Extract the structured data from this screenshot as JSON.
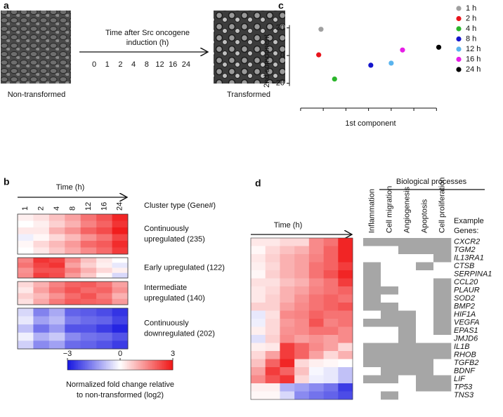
{
  "panel_labels": [
    "a",
    "b",
    "c",
    "d"
  ],
  "panel_a": {
    "left_caption": "Non-transformed",
    "right_caption": "Transformed",
    "arrow_text": [
      "Time after Src oncogene",
      "induction (h)"
    ],
    "timepoints": [
      "0",
      "1",
      "2",
      "4",
      "8",
      "12",
      "16",
      "24"
    ]
  },
  "panel_b": {
    "time_label": "Time (h)",
    "columns": [
      "1",
      "2",
      "4",
      "8",
      "12",
      "16",
      "24"
    ],
    "cluster_header": "Cluster type (Gene#)",
    "clusters": [
      {
        "label": [
          "Continuously",
          "upregulated (235)"
        ],
        "rows": [
          [
            0.2,
            0.4,
            0.8,
            1.2,
            1.8,
            2.2,
            2.8
          ],
          [
            0.0,
            0.2,
            0.6,
            1.0,
            1.6,
            2.0,
            2.6
          ],
          [
            0.3,
            0.3,
            1.0,
            1.4,
            2.0,
            2.3,
            2.9
          ],
          [
            -0.2,
            0.1,
            0.5,
            0.9,
            1.4,
            1.8,
            2.4
          ],
          [
            0.1,
            0.5,
            0.9,
            1.3,
            1.9,
            2.1,
            2.7
          ],
          [
            0.0,
            0.3,
            0.7,
            1.1,
            1.5,
            1.9,
            2.5
          ]
        ]
      },
      {
        "label": [
          "Early upregulated (122)"
        ],
        "rows": [
          [
            1.6,
            2.6,
            2.4,
            1.5,
            0.8,
            0.3,
            0.0
          ],
          [
            1.8,
            2.4,
            2.6,
            1.2,
            0.6,
            0.2,
            -0.3
          ],
          [
            1.4,
            2.2,
            2.2,
            1.6,
            1.0,
            0.5,
            0.2
          ],
          [
            1.5,
            2.5,
            2.3,
            1.3,
            0.7,
            0.1,
            -0.5
          ]
        ]
      },
      {
        "label": [
          "Intermediate",
          "upregulated (140)"
        ],
        "rows": [
          [
            0.5,
            1.0,
            1.6,
            2.0,
            2.1,
            1.8,
            1.2
          ],
          [
            0.3,
            1.2,
            1.8,
            2.2,
            1.9,
            2.0,
            1.4
          ],
          [
            0.6,
            0.9,
            1.4,
            1.9,
            2.2,
            1.7,
            1.0
          ],
          [
            0.4,
            1.1,
            1.7,
            2.1,
            2.0,
            1.9,
            1.3
          ]
        ]
      },
      {
        "label": [
          "Continuously",
          "downregulated (202)"
        ],
        "rows": [
          [
            -0.5,
            -1.6,
            -1.1,
            -2.0,
            -2.1,
            -2.3,
            -2.6
          ],
          [
            -0.3,
            -1.2,
            -0.9,
            -1.7,
            -1.9,
            -2.0,
            -2.4
          ],
          [
            -0.8,
            -1.8,
            -1.3,
            -2.2,
            -2.2,
            -2.5,
            -2.8
          ],
          [
            -0.2,
            -1.0,
            -0.7,
            -1.5,
            -1.8,
            -1.9,
            -2.2
          ],
          [
            -0.6,
            -1.5,
            -1.2,
            -1.9,
            -2.0,
            -2.2,
            -2.5
          ]
        ]
      }
    ],
    "colorbar": {
      "lim": [
        -3,
        3
      ],
      "low_color": "#1515e0",
      "high_color": "#f01515",
      "ticks": [
        {
          "value": -3,
          "label": "−3"
        },
        0,
        3
      ],
      "title": [
        "Normalized fold change relative",
        "to non-transformed (log2)"
      ]
    }
  },
  "chart_data": {
    "type": "scatter",
    "xlabel": "1st component",
    "ylabel": "2nd component",
    "xlim": [
      -34,
      42
    ],
    "ylim": [
      -36,
      29
    ],
    "xticks": [
      -30,
      -20,
      -10,
      0,
      10,
      20,
      30
    ],
    "yticks": [
      {
        "value": -20,
        "label": "−20"
      },
      0,
      20
    ],
    "series": [
      {
        "name": "1 h",
        "color": "#a0a0a0",
        "x": [
          -21
        ],
        "values": [
          19
        ]
      },
      {
        "name": "2 h",
        "color": "#e8141c",
        "x": [
          -22
        ],
        "values": [
          0.5
        ]
      },
      {
        "name": "4 h",
        "color": "#2ab52a",
        "x": [
          -15
        ],
        "values": [
          -17
        ]
      },
      {
        "name": "8 h",
        "color": "#1414cc",
        "x": [
          1
        ],
        "values": [
          -7
        ]
      },
      {
        "name": "12 h",
        "color": "#5ab4ee",
        "x": [
          10
        ],
        "values": [
          -5.5
        ]
      },
      {
        "name": "16 h",
        "color": "#e61ee6",
        "x": [
          15
        ],
        "values": [
          4
        ]
      },
      {
        "name": "24 h",
        "color": "#000000",
        "x": [
          31
        ],
        "values": [
          6
        ]
      }
    ]
  },
  "panel_d": {
    "time_label": "Time (h)",
    "columns": [
      "1",
      "2",
      "4",
      "8",
      "12",
      "16",
      "24"
    ],
    "process_title": "Biological processes",
    "processes": [
      "Inflammation",
      "Cell migration",
      "Angiogenesis",
      "Apoptosis",
      "Cell proliferation"
    ],
    "genes_header": [
      "Example",
      "Genes:"
    ],
    "genes": [
      "CXCR2",
      "TGM2",
      "IL13RA1",
      "CTSB",
      "SERPINA1",
      "CCL20",
      "PLAUR",
      "SOD2",
      "BMP2",
      "HIF1A",
      "VEGFA",
      "EPAS1",
      "JMJD6",
      "IL1B",
      "RHOB",
      "TGFB2",
      "BDNF",
      "LIF",
      "TP53",
      "TNS3"
    ],
    "values": [
      [
        0.3,
        0.3,
        0.5,
        0.5,
        1.5,
        1.8,
        2.8
      ],
      [
        0.1,
        0.5,
        0.8,
        1.0,
        1.5,
        2.0,
        2.8
      ],
      [
        0.3,
        0.6,
        1.0,
        1.2,
        1.6,
        2.0,
        2.8
      ],
      [
        0.2,
        0.5,
        1.0,
        1.2,
        1.8,
        2.0,
        2.5
      ],
      [
        0.1,
        0.6,
        1.0,
        1.2,
        1.8,
        2.2,
        2.8
      ],
      [
        0.4,
        0.4,
        0.8,
        1.0,
        1.5,
        1.8,
        2.5
      ],
      [
        0.3,
        0.5,
        1.0,
        1.2,
        1.6,
        1.8,
        2.0
      ],
      [
        0.3,
        0.6,
        1.0,
        1.4,
        1.8,
        2.0,
        1.8
      ],
      [
        0.6,
        0.6,
        1.2,
        1.5,
        1.8,
        2.0,
        2.2
      ],
      [
        -0.3,
        0.4,
        1.5,
        1.6,
        2.0,
        1.8,
        1.8
      ],
      [
        -0.2,
        0.5,
        1.3,
        1.5,
        2.2,
        1.6,
        1.8
      ],
      [
        0.2,
        0.5,
        1.4,
        1.5,
        1.8,
        1.8,
        1.5
      ],
      [
        -0.4,
        0.6,
        1.5,
        1.2,
        1.4,
        1.2,
        1.5
      ],
      [
        0.2,
        0.3,
        2.5,
        2.0,
        1.5,
        1.2,
        0.5
      ],
      [
        0.5,
        1.2,
        2.5,
        2.0,
        1.2,
        0.5,
        1.0
      ],
      [
        0.8,
        2.0,
        2.8,
        0.5,
        0.2,
        0.1,
        0.0
      ],
      [
        1.2,
        2.5,
        2.0,
        0.8,
        -0.1,
        -0.3,
        -0.8
      ],
      [
        1.5,
        2.2,
        2.6,
        0.5,
        -0.2,
        -0.3,
        -0.8
      ],
      [
        0.2,
        0.2,
        -1.0,
        -1.2,
        -1.5,
        -1.8,
        -2.5
      ],
      [
        0.1,
        0.1,
        -0.5,
        -1.5,
        -1.8,
        -2.0,
        -2.3
      ]
    ],
    "membership": [
      [
        1,
        1,
        1,
        1,
        1
      ],
      [
        0,
        0,
        1,
        1,
        1
      ],
      [
        0,
        0,
        0,
        0,
        1
      ],
      [
        1,
        0,
        0,
        1,
        0
      ],
      [
        1,
        0,
        0,
        0,
        0
      ],
      [
        1,
        0,
        0,
        0,
        1
      ],
      [
        1,
        1,
        0,
        0,
        1
      ],
      [
        1,
        0,
        0,
        0,
        1
      ],
      [
        1,
        1,
        0,
        0,
        1
      ],
      [
        0,
        1,
        1,
        0,
        1
      ],
      [
        1,
        1,
        1,
        0,
        1
      ],
      [
        0,
        0,
        1,
        0,
        1
      ],
      [
        0,
        0,
        1,
        0,
        0
      ],
      [
        1,
        1,
        1,
        1,
        1
      ],
      [
        1,
        1,
        1,
        1,
        1
      ],
      [
        1,
        1,
        1,
        1,
        0
      ],
      [
        0,
        1,
        1,
        1,
        0
      ],
      [
        1,
        1,
        0,
        1,
        1
      ],
      [
        0,
        0,
        0,
        1,
        1
      ],
      [
        0,
        1,
        0,
        0,
        0
      ]
    ],
    "member_color": "#a6a6a6"
  }
}
